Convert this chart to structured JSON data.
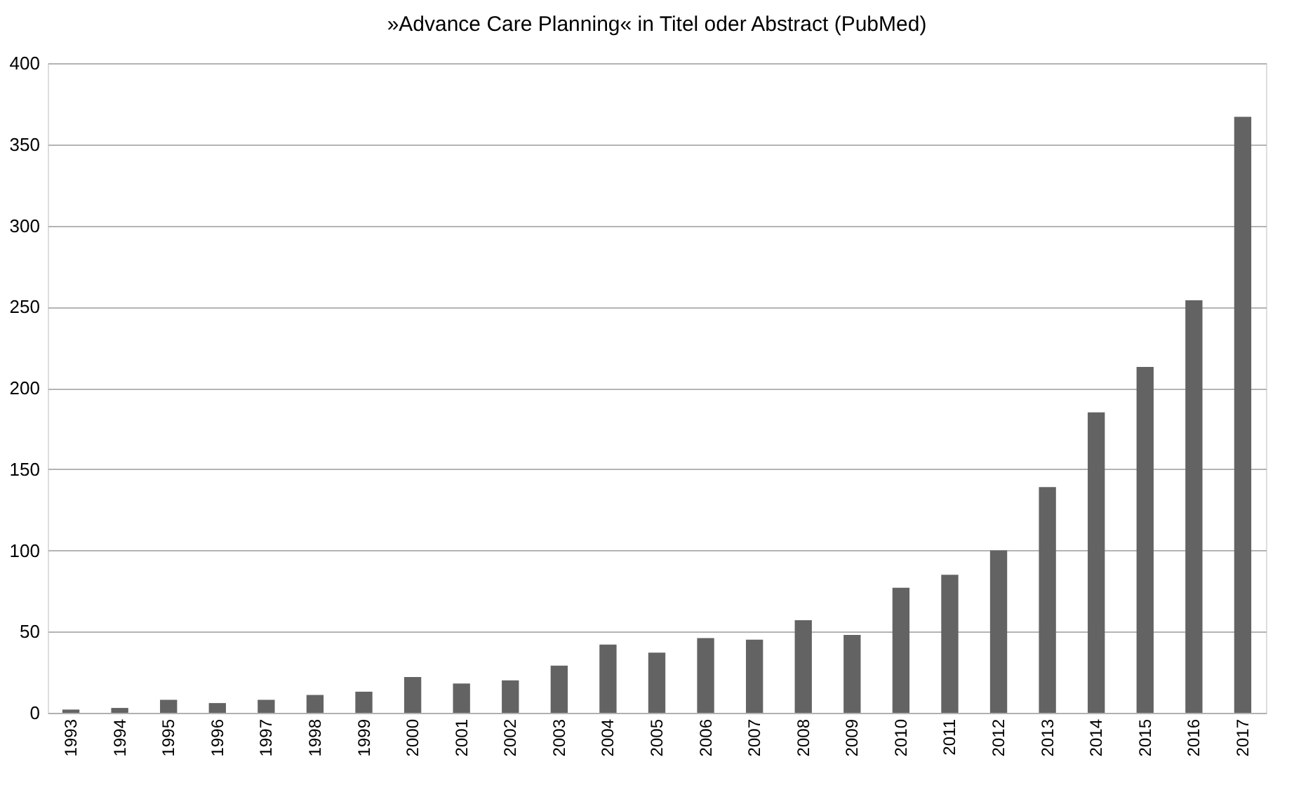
{
  "chart_data": {
    "type": "bar",
    "title": "»Advance Care Planning« in Titel oder Abstract (PubMed)",
    "categories": [
      "1993",
      "1994",
      "1995",
      "1996",
      "1997",
      "1998",
      "1999",
      "2000",
      "2001",
      "2002",
      "2003",
      "2004",
      "2005",
      "2006",
      "2007",
      "2008",
      "2009",
      "2010",
      "2011",
      "2012",
      "2013",
      "2014",
      "2015",
      "2016",
      "2017"
    ],
    "values": [
      2,
      3,
      8,
      6,
      8,
      11,
      13,
      22,
      18,
      20,
      29,
      42,
      37,
      46,
      45,
      57,
      48,
      77,
      85,
      100,
      139,
      185,
      213,
      254,
      367
    ],
    "color": "#636363",
    "ylim": [
      0,
      400
    ],
    "yticks": [
      0,
      50,
      100,
      150,
      200,
      250,
      300,
      350,
      400
    ],
    "grid": "y"
  }
}
